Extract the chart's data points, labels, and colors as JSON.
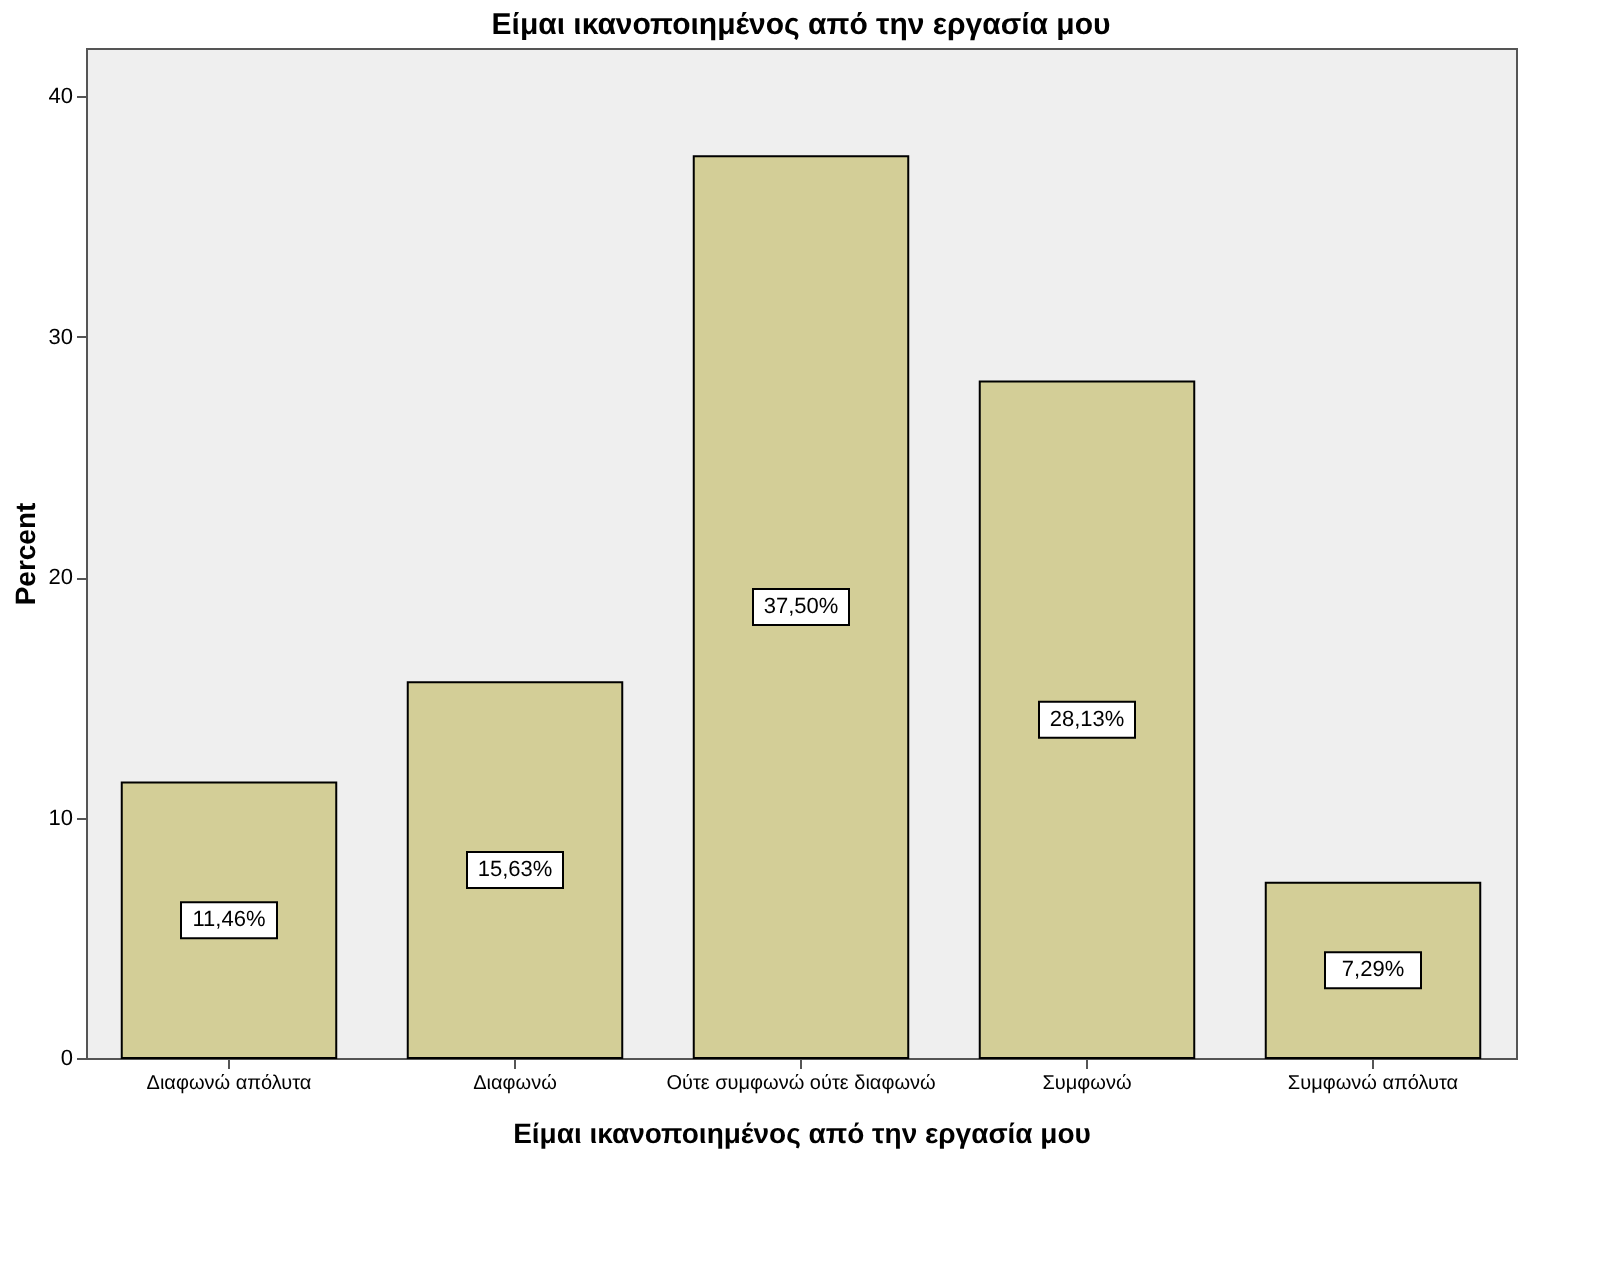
{
  "chart_data": {
    "type": "bar",
    "title": "Είμαι ικανοποιημένος από την εργασία μου",
    "xlabel": "Είμαι ικανοποιημένος από την εργασία μου",
    "ylabel": "Percent",
    "categories": [
      "Διαφωνώ απόλυτα",
      "Διαφωνώ",
      "Ούτε συμφωνώ ούτε διαφωνώ",
      "Συμφωνώ",
      "Συμφωνώ απόλυτα"
    ],
    "values": [
      11.46,
      15.63,
      37.5,
      28.13,
      7.29
    ],
    "value_labels": [
      "11,46%",
      "15,63%",
      "37,50%",
      "28,13%",
      "7,29%"
    ],
    "color": "#d3ce97",
    "ylim": [
      0,
      42
    ],
    "yticks": [
      0,
      10,
      20,
      30,
      40
    ],
    "grid": false
  }
}
